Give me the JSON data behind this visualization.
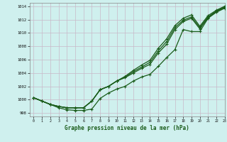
{
  "xlabel": "Graphe pression niveau de la mer (hPa)",
  "ylim": [
    997.5,
    1014.5
  ],
  "xlim": [
    -0.5,
    23
  ],
  "yticks": [
    998,
    1000,
    1002,
    1004,
    1006,
    1008,
    1010,
    1012,
    1014
  ],
  "xticks": [
    0,
    1,
    2,
    3,
    4,
    5,
    6,
    7,
    8,
    9,
    10,
    11,
    12,
    13,
    14,
    15,
    16,
    17,
    18,
    19,
    20,
    21,
    22,
    23
  ],
  "bg_color": "#cff0ee",
  "line_color": "#1a5c1a",
  "lower_curve": [
    1000.3,
    999.8,
    999.3,
    998.8,
    998.5,
    998.4,
    998.4,
    998.6,
    1000.2,
    1001.0,
    1001.6,
    1002.0,
    1002.8,
    1003.4,
    1003.8,
    1005.0,
    1006.3,
    1007.5,
    1010.5,
    1010.2,
    1010.2,
    1012.2,
    1013.1,
    1013.7
  ],
  "upper1": [
    1000.3,
    999.8,
    999.3,
    999.0,
    998.8,
    998.8,
    998.8,
    999.8,
    1001.5,
    1002.0,
    1002.8,
    1003.3,
    1004.0,
    1004.7,
    1005.3,
    1007.0,
    1008.3,
    1010.5,
    1011.7,
    1012.2,
    1010.6,
    1012.3,
    1013.2,
    1013.8
  ],
  "upper2": [
    1000.3,
    999.8,
    999.3,
    999.0,
    998.8,
    998.8,
    998.8,
    999.8,
    1001.5,
    1002.0,
    1002.8,
    1003.4,
    1004.2,
    1004.9,
    1005.6,
    1007.3,
    1008.7,
    1010.8,
    1011.9,
    1012.4,
    1010.8,
    1012.4,
    1013.3,
    1013.9
  ],
  "upper3": [
    1000.3,
    999.8,
    999.3,
    999.0,
    998.8,
    998.8,
    998.8,
    999.8,
    1001.5,
    1002.0,
    1002.8,
    1003.5,
    1004.4,
    1005.2,
    1005.9,
    1007.7,
    1009.1,
    1011.1,
    1012.2,
    1012.7,
    1011.0,
    1012.6,
    1013.4,
    1014.0
  ]
}
